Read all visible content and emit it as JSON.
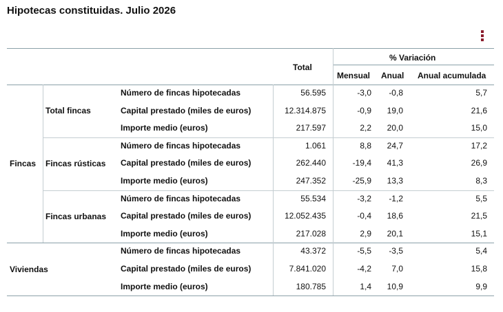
{
  "title": "Hipotecas constituidas. Julio 2026",
  "menu_icon": "kebab-menu-icon",
  "header": {
    "total": "Total",
    "variacion": "% Variación",
    "mensual": "Mensual",
    "anual": "Anual",
    "anual_acumulada": "Anual acumulada"
  },
  "groups": [
    {
      "label": "Fincas",
      "subgroups": [
        {
          "label": "Total fincas",
          "rows": [
            {
              "label": "Número de fincas hipotecadas",
              "total": "56.595",
              "mensual": "-3,0",
              "anual": "-0,8",
              "acumulada": "5,7"
            },
            {
              "label": "Capital prestado (miles de euros)",
              "total": "12.314.875",
              "mensual": "-0,9",
              "anual": "19,0",
              "acumulada": "21,6"
            },
            {
              "label": "Importe medio (euros)",
              "total": "217.597",
              "mensual": "2,2",
              "anual": "20,0",
              "acumulada": "15,0"
            }
          ]
        },
        {
          "label": "Fincas rústicas",
          "rows": [
            {
              "label": "Número de fincas hipotecadas",
              "total": "1.061",
              "mensual": "8,8",
              "anual": "24,7",
              "acumulada": "17,2"
            },
            {
              "label": "Capital prestado (miles de euros)",
              "total": "262.440",
              "mensual": "-19,4",
              "anual": "41,3",
              "acumulada": "26,9"
            },
            {
              "label": "Importe medio (euros)",
              "total": "247.352",
              "mensual": "-25,9",
              "anual": "13,3",
              "acumulada": "8,3"
            }
          ]
        },
        {
          "label": "Fincas urbanas",
          "rows": [
            {
              "label": "Número de fincas hipotecadas",
              "total": "55.534",
              "mensual": "-3,2",
              "anual": "-1,2",
              "acumulada": "5,5"
            },
            {
              "label": "Capital prestado (miles de euros)",
              "total": "12.052.435",
              "mensual": "-0,4",
              "anual": "18,6",
              "acumulada": "21,5"
            },
            {
              "label": "Importe medio (euros)",
              "total": "217.028",
              "mensual": "2,9",
              "anual": "20,1",
              "acumulada": "15,1"
            }
          ]
        }
      ]
    },
    {
      "label": "Viviendas",
      "subgroups": [
        {
          "label": "",
          "rows": [
            {
              "label": "Número de fincas hipotecadas",
              "total": "43.372",
              "mensual": "-5,5",
              "anual": "-3,5",
              "acumulada": "5,4"
            },
            {
              "label": "Capital prestado (miles de euros)",
              "total": "7.841.020",
              "mensual": "-4,2",
              "anual": "7,0",
              "acumulada": "15,8"
            },
            {
              "label": "Importe medio (euros)",
              "total": "180.785",
              "mensual": "1,4",
              "anual": "10,9",
              "acumulada": "9,9"
            }
          ]
        }
      ]
    }
  ]
}
